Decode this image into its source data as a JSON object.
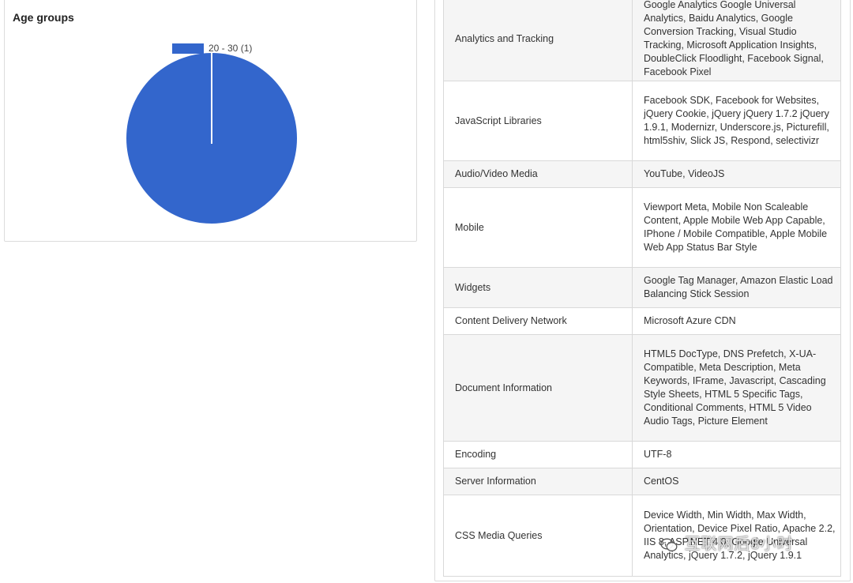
{
  "age_panel": {
    "title": "Age groups"
  },
  "chart_data": {
    "type": "pie",
    "categories": [
      "20 - 30 (1)"
    ],
    "values": [
      1
    ],
    "legend": [
      "20 - 30 (1)"
    ],
    "legend_position": "top",
    "colors": [
      "#3366cc"
    ]
  },
  "tech_table": {
    "rows": [
      {
        "category": "Analytics and Tracking",
        "value": "Google Analytics Google Universal Analytics, Baidu Analytics, Google Conversion Tracking, Visual Studio Tracking, Microsoft Application Insights, DoubleClick Floodlight, Facebook Signal, Facebook Pixel"
      },
      {
        "category": "JavaScript Libraries",
        "value": "Facebook SDK, Facebook for Websites, jQuery Cookie, jQuery jQuery 1.7.2 jQuery 1.9.1, Modernizr, Underscore.js, Picturefill, html5shiv, Slick JS, Respond, selectivizr"
      },
      {
        "category": "Audio/Video Media",
        "value": "YouTube, VideoJS"
      },
      {
        "category": "Mobile",
        "value": "Viewport Meta, Mobile Non Scaleable Content, Apple Mobile Web App Capable, IPhone / Mobile Compatible, Apple Mobile Web App Status Bar Style"
      },
      {
        "category": "Widgets",
        "value": "Google Tag Manager, Amazon Elastic Load Balancing Stick Session"
      },
      {
        "category": "Content Delivery Network",
        "value": "Microsoft Azure CDN"
      },
      {
        "category": "Document Information",
        "value": "HTML5 DocType, DNS Prefetch, X-UA-Compatible, Meta Description, Meta Keywords, IFrame, Javascript, Cascading Style Sheets, HTML 5 Specific Tags, Conditional Comments, HTML 5 Video Audio Tags, Picture Element"
      },
      {
        "category": "Encoding",
        "value": "UTF-8"
      },
      {
        "category": "Server Information",
        "value": "CentOS"
      },
      {
        "category": "CSS Media Queries",
        "value": "Device Width, Min Width, Max Width, Orientation, Device Pixel Ratio, Apache 2.2, IIS 8, ASP.NET 4.0, Google Universal Analytics, jQuery 1.7.2, jQuery 1.9.1"
      }
    ]
  },
  "watermark": {
    "text": "互联网后8小时",
    "icon": "wechat-icon"
  }
}
